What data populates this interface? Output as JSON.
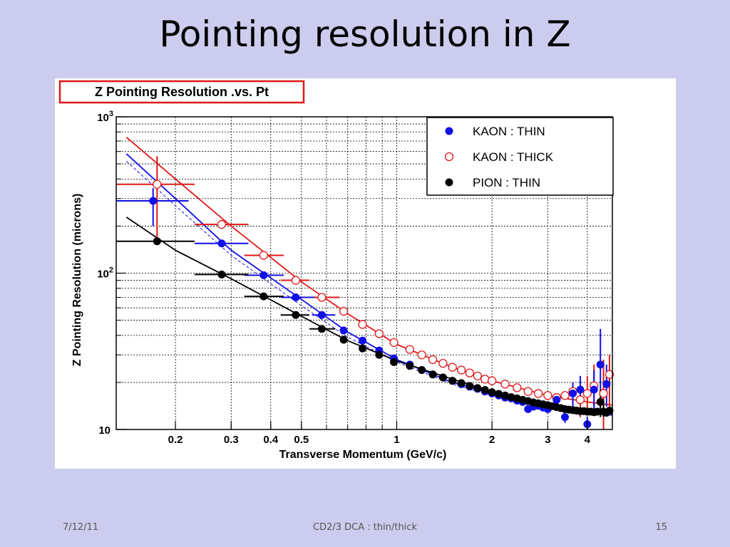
{
  "slide": {
    "title": "Pointing resolution in Z",
    "footer_date": "7/12/11",
    "footer_center": "CD2/3 DCA : thin/thick",
    "page_number": "15"
  },
  "chart_data": {
    "type": "scatter",
    "title": "Z Pointing Resolution .vs. Pt",
    "xlabel": "Transverse Momentum (GeV/c)",
    "ylabel": "Z Pointing Resolution (microns)",
    "xscale": "log",
    "yscale": "log",
    "xlim": [
      0.13,
      4.8
    ],
    "ylim": [
      10,
      1000
    ],
    "x_ticks": [
      {
        "v": 0.2,
        "label": "0.2"
      },
      {
        "v": 0.3,
        "label": "0.3"
      },
      {
        "v": 0.4,
        "label": "0.4"
      },
      {
        "v": 0.5,
        "label": "0.5"
      },
      {
        "v": 1,
        "label": "1"
      },
      {
        "v": 2,
        "label": "2"
      },
      {
        "v": 3,
        "label": "3"
      },
      {
        "v": 4,
        "label": "4"
      }
    ],
    "y_ticks": [
      {
        "v": 10,
        "base": "10",
        "exp": ""
      },
      {
        "v": 100,
        "base": "10",
        "exp": "2"
      },
      {
        "v": 1000,
        "base": "10",
        "exp": "3"
      }
    ],
    "grid": true,
    "legend_position": "top-right",
    "series": [
      {
        "name": "KAON : THIN",
        "color": "#1010e8",
        "marker": "filled-circle",
        "points": [
          {
            "x": 0.17,
            "y": 290,
            "xlo": 0.13,
            "xhi": 0.22,
            "ylo": 200,
            "yhi": 350
          },
          {
            "x": 0.28,
            "y": 155,
            "xlo": 0.23,
            "xhi": 0.34
          },
          {
            "x": 0.38,
            "y": 97,
            "xlo": 0.33,
            "xhi": 0.44
          },
          {
            "x": 0.48,
            "y": 70,
            "xlo": 0.43,
            "xhi": 0.55
          },
          {
            "x": 0.58,
            "y": 54,
            "xlo": 0.54,
            "xhi": 0.64
          },
          {
            "x": 0.68,
            "y": 43
          },
          {
            "x": 0.78,
            "y": 37
          },
          {
            "x": 0.88,
            "y": 32
          },
          {
            "x": 0.98,
            "y": 28.5
          },
          {
            "x": 1.1,
            "y": 26
          },
          {
            "x": 1.2,
            "y": 24
          },
          {
            "x": 1.3,
            "y": 22.5
          },
          {
            "x": 1.4,
            "y": 21.5
          },
          {
            "x": 1.5,
            "y": 20.5
          },
          {
            "x": 1.6,
            "y": 19.5
          },
          {
            "x": 1.7,
            "y": 18.8
          },
          {
            "x": 1.8,
            "y": 18.2
          },
          {
            "x": 1.9,
            "y": 17.5
          },
          {
            "x": 2.0,
            "y": 17
          },
          {
            "x": 2.1,
            "y": 16.5
          },
          {
            "x": 2.2,
            "y": 16
          },
          {
            "x": 2.3,
            "y": 15.8
          },
          {
            "x": 2.4,
            "y": 15.3
          },
          {
            "x": 2.5,
            "y": 15
          },
          {
            "x": 2.6,
            "y": 13.5
          },
          {
            "x": 2.7,
            "y": 14
          },
          {
            "x": 2.8,
            "y": 14.2
          },
          {
            "x": 2.9,
            "y": 13.8
          },
          {
            "x": 3.0,
            "y": 13.5
          },
          {
            "x": 3.2,
            "y": 15.5
          },
          {
            "x": 3.4,
            "y": 12,
            "ylo": 11,
            "yhi": 14
          },
          {
            "x": 3.6,
            "y": 17,
            "ylo": 14,
            "yhi": 20
          },
          {
            "x": 3.8,
            "y": 18,
            "ylo": 15,
            "yhi": 22
          },
          {
            "x": 4.0,
            "y": 10.8,
            "ylo": 10,
            "yhi": 12
          },
          {
            "x": 4.2,
            "y": 18,
            "ylo": 13,
            "yhi": 24
          },
          {
            "x": 4.4,
            "y": 26,
            "ylo": 13,
            "yhi": 44
          },
          {
            "x": 4.6,
            "y": 19.5,
            "ylo": 14,
            "yhi": 26
          }
        ]
      },
      {
        "name": "KAON : THICK",
        "color": "#e01818",
        "marker": "open-circle",
        "points": [
          {
            "x": 0.175,
            "y": 370,
            "xlo": 0.13,
            "xhi": 0.23,
            "ylo": 160,
            "yhi": 560
          },
          {
            "x": 0.28,
            "y": 205,
            "xlo": 0.23,
            "xhi": 0.34
          },
          {
            "x": 0.38,
            "y": 130,
            "xlo": 0.33,
            "xhi": 0.44
          },
          {
            "x": 0.48,
            "y": 90,
            "xlo": 0.43,
            "xhi": 0.53
          },
          {
            "x": 0.58,
            "y": 70,
            "xlo": 0.53,
            "xhi": 0.66
          },
          {
            "x": 0.68,
            "y": 57
          },
          {
            "x": 0.78,
            "y": 47
          },
          {
            "x": 0.88,
            "y": 41
          },
          {
            "x": 0.98,
            "y": 36
          },
          {
            "x": 1.1,
            "y": 32.5
          },
          {
            "x": 1.2,
            "y": 30
          },
          {
            "x": 1.3,
            "y": 28
          },
          {
            "x": 1.4,
            "y": 26.5
          },
          {
            "x": 1.5,
            "y": 25
          },
          {
            "x": 1.6,
            "y": 24
          },
          {
            "x": 1.7,
            "y": 23
          },
          {
            "x": 1.8,
            "y": 22
          },
          {
            "x": 1.9,
            "y": 21
          },
          {
            "x": 2.0,
            "y": 20.5
          },
          {
            "x": 2.2,
            "y": 19.5
          },
          {
            "x": 2.4,
            "y": 18.5
          },
          {
            "x": 2.6,
            "y": 17.5
          },
          {
            "x": 2.8,
            "y": 17
          },
          {
            "x": 3.0,
            "y": 16.5
          },
          {
            "x": 3.2,
            "y": 16
          },
          {
            "x": 3.4,
            "y": 16.5
          },
          {
            "x": 3.6,
            "y": 17.5
          },
          {
            "x": 3.8,
            "y": 15.5,
            "ylo": 12,
            "yhi": 19
          },
          {
            "x": 4.0,
            "y": 17,
            "ylo": 13,
            "yhi": 22
          },
          {
            "x": 4.2,
            "y": 19,
            "ylo": 13,
            "yhi": 26
          },
          {
            "x": 4.5,
            "y": 17,
            "ylo": 10,
            "yhi": 28
          },
          {
            "x": 4.7,
            "y": 22.5,
            "ylo": 14,
            "yhi": 30
          }
        ]
      },
      {
        "name": "PION : THIN",
        "color": "#000000",
        "marker": "filled-circle",
        "points": [
          {
            "x": 0.175,
            "y": 160,
            "xlo": 0.13,
            "xhi": 0.23
          },
          {
            "x": 0.28,
            "y": 98,
            "xlo": 0.23,
            "xhi": 0.34
          },
          {
            "x": 0.38,
            "y": 71,
            "xlo": 0.33,
            "xhi": 0.44
          },
          {
            "x": 0.48,
            "y": 54,
            "xlo": 0.43,
            "xhi": 0.53
          },
          {
            "x": 0.58,
            "y": 44,
            "xlo": 0.53,
            "xhi": 0.64
          },
          {
            "x": 0.68,
            "y": 37.5
          },
          {
            "x": 0.78,
            "y": 33
          },
          {
            "x": 0.88,
            "y": 30
          },
          {
            "x": 0.98,
            "y": 27
          },
          {
            "x": 1.1,
            "y": 25.5
          },
          {
            "x": 1.2,
            "y": 24
          },
          {
            "x": 1.3,
            "y": 22.5
          },
          {
            "x": 1.4,
            "y": 21.5
          },
          {
            "x": 1.5,
            "y": 20.5
          },
          {
            "x": 1.6,
            "y": 19.8
          },
          {
            "x": 1.7,
            "y": 19
          },
          {
            "x": 1.8,
            "y": 18.4
          },
          {
            "x": 1.9,
            "y": 17.9
          },
          {
            "x": 2.0,
            "y": 17.3
          },
          {
            "x": 2.1,
            "y": 16.9
          },
          {
            "x": 2.2,
            "y": 16.5
          },
          {
            "x": 2.3,
            "y": 16.1
          },
          {
            "x": 2.4,
            "y": 15.8
          },
          {
            "x": 2.5,
            "y": 15.5
          },
          {
            "x": 2.6,
            "y": 15.2
          },
          {
            "x": 2.7,
            "y": 14.9
          },
          {
            "x": 2.8,
            "y": 14.7
          },
          {
            "x": 2.9,
            "y": 14.5
          },
          {
            "x": 3.0,
            "y": 14.3
          },
          {
            "x": 3.1,
            "y": 14.1
          },
          {
            "x": 3.2,
            "y": 13.9
          },
          {
            "x": 3.3,
            "y": 13.7
          },
          {
            "x": 3.4,
            "y": 13.5
          },
          {
            "x": 3.5,
            "y": 13.4
          },
          {
            "x": 3.6,
            "y": 13.3
          },
          {
            "x": 3.7,
            "y": 13.2
          },
          {
            "x": 3.8,
            "y": 13.1
          },
          {
            "x": 3.9,
            "y": 13.1
          },
          {
            "x": 4.0,
            "y": 13
          },
          {
            "x": 4.1,
            "y": 13
          },
          {
            "x": 4.2,
            "y": 12.9
          },
          {
            "x": 4.3,
            "y": 13
          },
          {
            "x": 4.4,
            "y": 15,
            "ylo": 12,
            "yhi": 18
          },
          {
            "x": 4.5,
            "y": 13,
            "ylo": 12,
            "yhi": 15
          },
          {
            "x": 4.6,
            "y": 12.8
          },
          {
            "x": 4.7,
            "y": 13.2
          }
        ]
      }
    ],
    "fits": [
      {
        "name": "KAON : THICK",
        "color": "#e01818",
        "dashed": false,
        "points": [
          [
            0.14,
            740
          ],
          [
            0.2,
            400
          ],
          [
            0.3,
            200
          ],
          [
            0.5,
            88
          ],
          [
            0.7,
            55
          ],
          [
            1,
            35
          ],
          [
            1.5,
            25
          ],
          [
            2,
            20.5
          ],
          [
            3,
            16.5
          ],
          [
            4,
            15
          ],
          [
            4.8,
            14.3
          ]
        ]
      },
      {
        "name": "KAON : THIN",
        "color": "#1010e8",
        "dashed": false,
        "points": [
          [
            0.14,
            580
          ],
          [
            0.2,
            300
          ],
          [
            0.3,
            140
          ],
          [
            0.5,
            68
          ],
          [
            0.7,
            42
          ],
          [
            1,
            28
          ],
          [
            1.5,
            20
          ],
          [
            2,
            17
          ],
          [
            3,
            14
          ],
          [
            4,
            13
          ],
          [
            4.8,
            12.5
          ]
        ]
      },
      {
        "name": "KAON : THIN",
        "color": "#1010e8",
        "dashed": true,
        "points": [
          [
            0.14,
            520
          ],
          [
            0.2,
            270
          ],
          [
            0.3,
            130
          ],
          [
            0.5,
            62
          ],
          [
            0.7,
            39
          ],
          [
            1,
            27
          ],
          [
            1.5,
            19.5
          ],
          [
            2,
            16.5
          ],
          [
            3,
            13.8
          ],
          [
            4,
            12.8
          ],
          [
            4.8,
            12.3
          ]
        ]
      },
      {
        "name": "PION : THIN",
        "color": "#000000",
        "dashed": false,
        "points": [
          [
            0.14,
            228
          ],
          [
            0.2,
            140
          ],
          [
            0.3,
            92
          ],
          [
            0.5,
            53
          ],
          [
            0.7,
            37
          ],
          [
            1,
            27.5
          ],
          [
            1.5,
            21
          ],
          [
            2,
            17.5
          ],
          [
            3,
            14.5
          ],
          [
            4,
            13.2
          ],
          [
            4.8,
            12.6
          ]
        ]
      }
    ]
  }
}
